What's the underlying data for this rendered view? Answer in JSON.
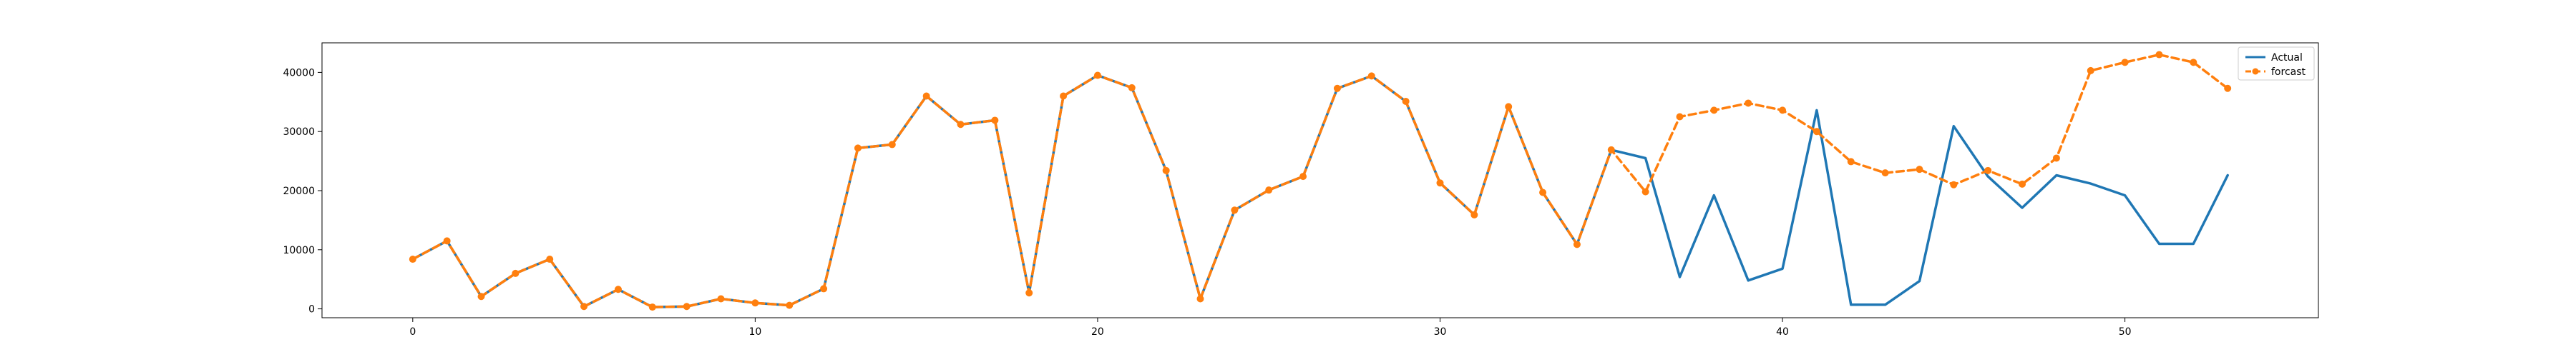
{
  "chart_data": {
    "type": "line",
    "x": [
      0,
      1,
      2,
      3,
      4,
      5,
      6,
      7,
      8,
      9,
      10,
      11,
      12,
      13,
      14,
      15,
      16,
      17,
      18,
      19,
      20,
      21,
      22,
      23,
      24,
      25,
      26,
      27,
      28,
      29,
      30,
      31,
      32,
      33,
      34,
      35,
      36,
      37,
      38,
      39,
      40,
      41,
      42,
      43,
      44,
      45,
      46,
      47,
      48,
      49,
      50,
      51,
      52,
      53
    ],
    "xlim": [
      -2.65,
      55.65
    ],
    "ylim": [
      -1500,
      45000
    ],
    "xticks": [
      0,
      10,
      20,
      30,
      40,
      50
    ],
    "yticks": [
      0,
      10000,
      20000,
      30000,
      40000
    ],
    "grid": false,
    "legend_position": "top-right",
    "series": [
      {
        "name": "Actual",
        "color": "#1f77b4",
        "values": [
          8400,
          11500,
          2100,
          6000,
          8400,
          400,
          3300,
          300,
          400,
          1700,
          1000,
          600,
          3400,
          27200,
          27800,
          36000,
          31200,
          31900,
          2700,
          36000,
          39500,
          37400,
          23400,
          1700,
          16700,
          20100,
          22400,
          37300,
          39400,
          35100,
          21300,
          15900,
          34200,
          19700,
          10900,
          26900,
          25500,
          5400,
          19200,
          4800,
          6800,
          33600,
          700,
          700,
          4700,
          30900,
          22400,
          17100,
          22600,
          21200,
          19200,
          11000,
          11000,
          22600
        ],
        "style": "solid",
        "marker": "none"
      },
      {
        "name": "forcast",
        "color": "#ff7f0e",
        "values": [
          8400,
          11500,
          2100,
          6000,
          8400,
          400,
          3300,
          300,
          400,
          1700,
          1000,
          600,
          3400,
          27200,
          27800,
          36000,
          31200,
          31900,
          2700,
          36000,
          39500,
          37400,
          23400,
          1700,
          16700,
          20100,
          22400,
          37300,
          39400,
          35100,
          21300,
          15900,
          34200,
          19700,
          10900,
          26900,
          19800,
          32500,
          33600,
          34800,
          33600,
          30000,
          24900,
          23000,
          23600,
          21000,
          23400,
          21100,
          25500,
          40300,
          41700,
          43000,
          41700,
          37300
        ],
        "style": "dashed",
        "marker": "circle"
      }
    ]
  }
}
